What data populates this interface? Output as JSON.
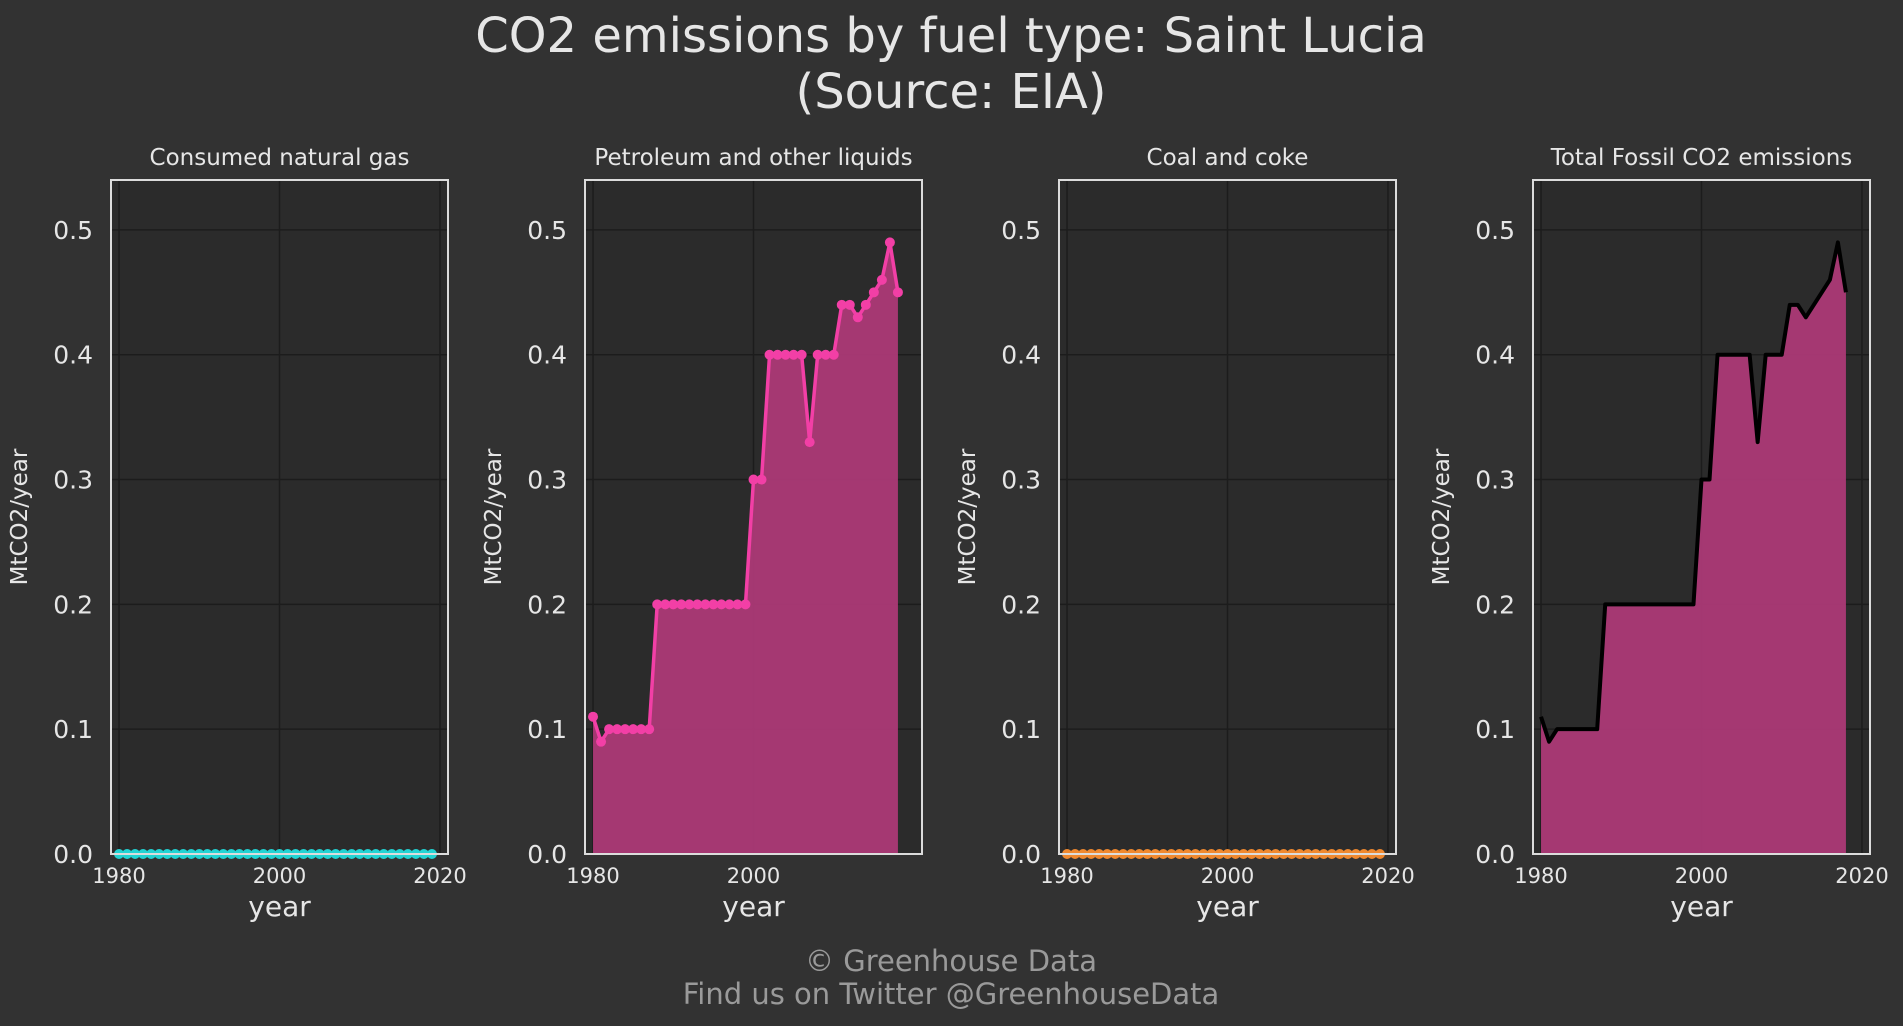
{
  "title_line1": "CO2 emissions by fuel type: Saint Lucia",
  "title_line2": "(Source: EIA)",
  "credit_line1": "© Greenhouse Data",
  "credit_line2": "Find us on Twitter @GreenhouseData",
  "colors": {
    "background": "#323232",
    "plot_bg": "#2b2b2b",
    "grid": "#1c1c1c",
    "frame": "#dcdcdc",
    "natural_gas": "#22d3d3",
    "petroleum": "#f23fa6",
    "petroleum_fill": "#b03a78",
    "coal": "#f0892f",
    "total_line": "#000000",
    "total_fill": "#b03a78"
  },
  "chart_data": [
    {
      "type": "line",
      "title": "Consumed natural gas",
      "xlabel": "year",
      "ylabel": "MtCO2/year",
      "xlim": [
        1979,
        2021
      ],
      "ylim": [
        0,
        0.54
      ],
      "xticks": [
        1980,
        2000,
        2020
      ],
      "xtick_labels": [
        "1980",
        "2000",
        "2020"
      ],
      "yticks": [
        0.0,
        0.1,
        0.2,
        0.3,
        0.4,
        0.5
      ],
      "ytick_labels": [
        "0.0",
        "0.1",
        "0.2",
        "0.3",
        "0.4",
        "0.5"
      ],
      "grid": true,
      "markers": true,
      "fill": false,
      "x": [
        1980,
        1981,
        1982,
        1983,
        1984,
        1985,
        1986,
        1987,
        1988,
        1989,
        1990,
        1991,
        1992,
        1993,
        1994,
        1995,
        1996,
        1997,
        1998,
        1999,
        2000,
        2001,
        2002,
        2003,
        2004,
        2005,
        2006,
        2007,
        2008,
        2009,
        2010,
        2011,
        2012,
        2013,
        2014,
        2015,
        2016,
        2017,
        2018,
        2019
      ],
      "y": [
        0,
        0,
        0,
        0,
        0,
        0,
        0,
        0,
        0,
        0,
        0,
        0,
        0,
        0,
        0,
        0,
        0,
        0,
        0,
        0,
        0,
        0,
        0,
        0,
        0,
        0,
        0,
        0,
        0,
        0,
        0,
        0,
        0,
        0,
        0,
        0,
        0,
        0,
        0,
        0
      ]
    },
    {
      "type": "area",
      "title": "Petroleum and other liquids",
      "xlabel": "year",
      "ylabel": "MtCO2/year",
      "xlim": [
        1979,
        2021
      ],
      "ylim": [
        0,
        0.54
      ],
      "xticks": [
        1980,
        2000
      ],
      "xtick_labels": [
        "1980",
        "2000"
      ],
      "yticks": [
        0.0,
        0.1,
        0.2,
        0.3,
        0.4,
        0.5
      ],
      "ytick_labels": [
        "0.0",
        "0.1",
        "0.2",
        "0.3",
        "0.4",
        "0.5"
      ],
      "grid": true,
      "markers": true,
      "fill": true,
      "x": [
        1980,
        1981,
        1982,
        1983,
        1984,
        1985,
        1986,
        1987,
        1988,
        1989,
        1990,
        1991,
        1992,
        1993,
        1994,
        1995,
        1996,
        1997,
        1998,
        1999,
        2000,
        2001,
        2002,
        2003,
        2004,
        2005,
        2006,
        2007,
        2008,
        2009,
        2010,
        2011,
        2012,
        2013,
        2014,
        2015,
        2016,
        2017,
        2018
      ],
      "y": [
        0.11,
        0.09,
        0.1,
        0.1,
        0.1,
        0.1,
        0.1,
        0.1,
        0.2,
        0.2,
        0.2,
        0.2,
        0.2,
        0.2,
        0.2,
        0.2,
        0.2,
        0.2,
        0.2,
        0.2,
        0.3,
        0.3,
        0.4,
        0.4,
        0.4,
        0.4,
        0.4,
        0.33,
        0.4,
        0.4,
        0.4,
        0.44,
        0.44,
        0.43,
        0.44,
        0.45,
        0.46,
        0.49,
        0.45
      ]
    },
    {
      "type": "line",
      "title": "Coal and coke",
      "xlabel": "year",
      "ylabel": "MtCO2/year",
      "xlim": [
        1979,
        2021
      ],
      "ylim": [
        0,
        0.54
      ],
      "xticks": [
        1980,
        2000,
        2020
      ],
      "xtick_labels": [
        "1980",
        "2000",
        "2020"
      ],
      "yticks": [
        0.0,
        0.1,
        0.2,
        0.3,
        0.4,
        0.5
      ],
      "ytick_labels": [
        "0.0",
        "0.1",
        "0.2",
        "0.3",
        "0.4",
        "0.5"
      ],
      "grid": true,
      "markers": true,
      "fill": false,
      "x": [
        1980,
        1981,
        1982,
        1983,
        1984,
        1985,
        1986,
        1987,
        1988,
        1989,
        1990,
        1991,
        1992,
        1993,
        1994,
        1995,
        1996,
        1997,
        1998,
        1999,
        2000,
        2001,
        2002,
        2003,
        2004,
        2005,
        2006,
        2007,
        2008,
        2009,
        2010,
        2011,
        2012,
        2013,
        2014,
        2015,
        2016,
        2017,
        2018,
        2019
      ],
      "y": [
        0,
        0,
        0,
        0,
        0,
        0,
        0,
        0,
        0,
        0,
        0,
        0,
        0,
        0,
        0,
        0,
        0,
        0,
        0,
        0,
        0,
        0,
        0,
        0,
        0,
        0,
        0,
        0,
        0,
        0,
        0,
        0,
        0,
        0,
        0,
        0,
        0,
        0,
        0,
        0
      ]
    },
    {
      "type": "area",
      "title": "Total Fossil CO2 emissions",
      "xlabel": "year",
      "ylabel": "MtCO2/year",
      "xlim": [
        1979,
        2021
      ],
      "ylim": [
        0,
        0.54
      ],
      "xticks": [
        1980,
        2000,
        2020
      ],
      "xtick_labels": [
        "1980",
        "2000",
        "2020"
      ],
      "yticks": [
        0.0,
        0.1,
        0.2,
        0.3,
        0.4,
        0.5
      ],
      "ytick_labels": [
        "0.0",
        "0.1",
        "0.2",
        "0.3",
        "0.4",
        "0.5"
      ],
      "grid": true,
      "markers": false,
      "fill": true,
      "x": [
        1980,
        1981,
        1982,
        1983,
        1984,
        1985,
        1986,
        1987,
        1988,
        1989,
        1990,
        1991,
        1992,
        1993,
        1994,
        1995,
        1996,
        1997,
        1998,
        1999,
        2000,
        2001,
        2002,
        2003,
        2004,
        2005,
        2006,
        2007,
        2008,
        2009,
        2010,
        2011,
        2012,
        2013,
        2014,
        2015,
        2016,
        2017,
        2018
      ],
      "y": [
        0.11,
        0.09,
        0.1,
        0.1,
        0.1,
        0.1,
        0.1,
        0.1,
        0.2,
        0.2,
        0.2,
        0.2,
        0.2,
        0.2,
        0.2,
        0.2,
        0.2,
        0.2,
        0.2,
        0.2,
        0.3,
        0.3,
        0.4,
        0.4,
        0.4,
        0.4,
        0.4,
        0.33,
        0.4,
        0.4,
        0.4,
        0.44,
        0.44,
        0.43,
        0.44,
        0.45,
        0.46,
        0.49,
        0.45
      ]
    }
  ]
}
